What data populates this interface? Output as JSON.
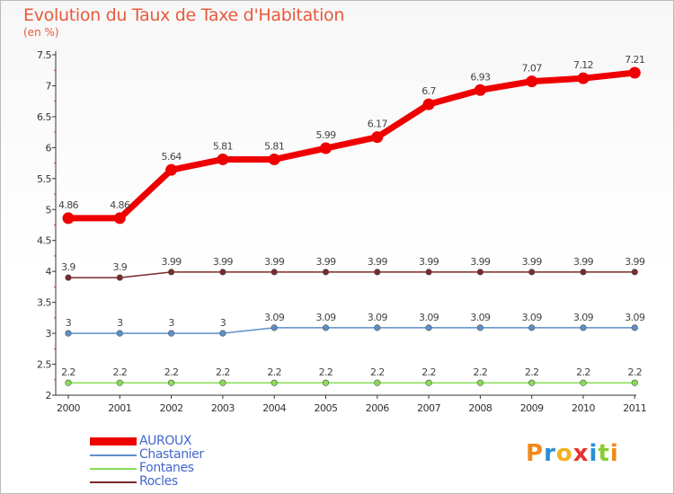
{
  "header": {
    "title": "Evolution du Taux de Taxe d'Habitation",
    "subtitle": "(en %)"
  },
  "chart_data": {
    "type": "line",
    "title": "Evolution du Taux de Taxe d'Habitation",
    "ylabel": "(en %)",
    "xlabel": "",
    "ylim": [
      2,
      7.5
    ],
    "yticks": [
      "2",
      "2.5",
      "3",
      "3.5",
      "4",
      "4.5",
      "5",
      "5.5",
      "6",
      "6.5",
      "7",
      "7.5"
    ],
    "x": [
      "2000",
      "2001",
      "2002",
      "2003",
      "2004",
      "2005",
      "2006",
      "2007",
      "2008",
      "2009",
      "2010",
      "2011"
    ],
    "series": [
      {
        "name": "AUROUX",
        "color": "#ee0000",
        "values": [
          4.86,
          4.86,
          5.64,
          5.81,
          5.81,
          5.99,
          6.17,
          6.7,
          6.93,
          7.07,
          7.12,
          7.21
        ],
        "labels": [
          "4.86",
          "4.86",
          "5.64",
          "5.81",
          "5.81",
          "5.99",
          "6.17",
          "6.7",
          "6.93",
          "7.07",
          "7.12",
          "7.21"
        ]
      },
      {
        "name": "Chastanier",
        "color": "#5b8fc9",
        "values": [
          3,
          3,
          3,
          3,
          3.09,
          3.09,
          3.09,
          3.09,
          3.09,
          3.09,
          3.09,
          3.09
        ],
        "labels": [
          "3",
          "3",
          "3",
          "3",
          "3.09",
          "3.09",
          "3.09",
          "3.09",
          "3.09",
          "3.09",
          "3.09",
          "3.09"
        ]
      },
      {
        "name": "Fontanes",
        "color": "#88dd55",
        "values": [
          2.2,
          2.2,
          2.2,
          2.2,
          2.2,
          2.2,
          2.2,
          2.2,
          2.2,
          2.2,
          2.2,
          2.2
        ],
        "labels": [
          "2.2",
          "2.2",
          "2.2",
          "2.2",
          "2.2",
          "2.2",
          "2.2",
          "2.2",
          "2.2",
          "2.2",
          "2.2",
          "2.2"
        ]
      },
      {
        "name": "Rocles",
        "color": "#7a2a2a",
        "values": [
          3.9,
          3.9,
          3.99,
          3.99,
          3.99,
          3.99,
          3.99,
          3.99,
          3.99,
          3.99,
          3.99,
          3.99
        ],
        "labels": [
          "3.9",
          "3.9",
          "3.99",
          "3.99",
          "3.99",
          "3.99",
          "3.99",
          "3.99",
          "3.99",
          "3.99",
          "3.99",
          "3.99"
        ]
      }
    ],
    "legend_position": "bottom-left"
  },
  "logo": {
    "text": "Proxiti",
    "colors": [
      "#f08a1a",
      "#2a8fd8",
      "#f0b020",
      "#e83030",
      "#2a8fd8",
      "#8acc30",
      "#f08a1a"
    ]
  }
}
